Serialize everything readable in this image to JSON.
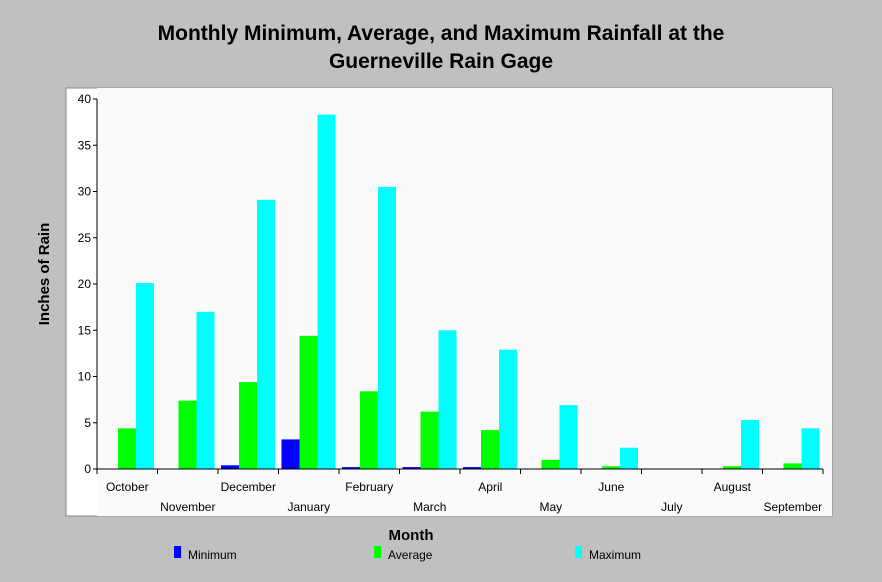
{
  "chart_data": {
    "type": "bar",
    "title_lines": [
      "Monthly Minimum, Average, and Maximum Rainfall at the",
      "Guerneville Rain Gage"
    ],
    "xlabel": "Month",
    "ylabel": "Inches of Rain",
    "ylim": [
      0,
      40
    ],
    "yticks": [
      "0",
      "5",
      "10",
      "15",
      "20",
      "25",
      "30",
      "35",
      "40"
    ],
    "categories": [
      "October",
      "November",
      "December",
      "January",
      "February",
      "March",
      "April",
      "May",
      "June",
      "July",
      "August",
      "September"
    ],
    "series": [
      {
        "name": "Minimum",
        "color": "#0000ff",
        "values": [
          0,
          0,
          0.4,
          3.2,
          0.2,
          0.2,
          0.2,
          0,
          0,
          0,
          0,
          0
        ]
      },
      {
        "name": "Average",
        "color": "#00ff00",
        "values": [
          4.4,
          7.4,
          9.4,
          14.4,
          8.4,
          6.2,
          4.2,
          1.0,
          0.3,
          0,
          0.3,
          0.6
        ]
      },
      {
        "name": "Maximum",
        "color": "#00ffff",
        "values": [
          20.1,
          17.0,
          29.1,
          38.3,
          30.5,
          15.0,
          12.9,
          6.9,
          2.3,
          0,
          5.3,
          4.4
        ]
      }
    ],
    "legend_position": "bottom",
    "grid": false
  }
}
